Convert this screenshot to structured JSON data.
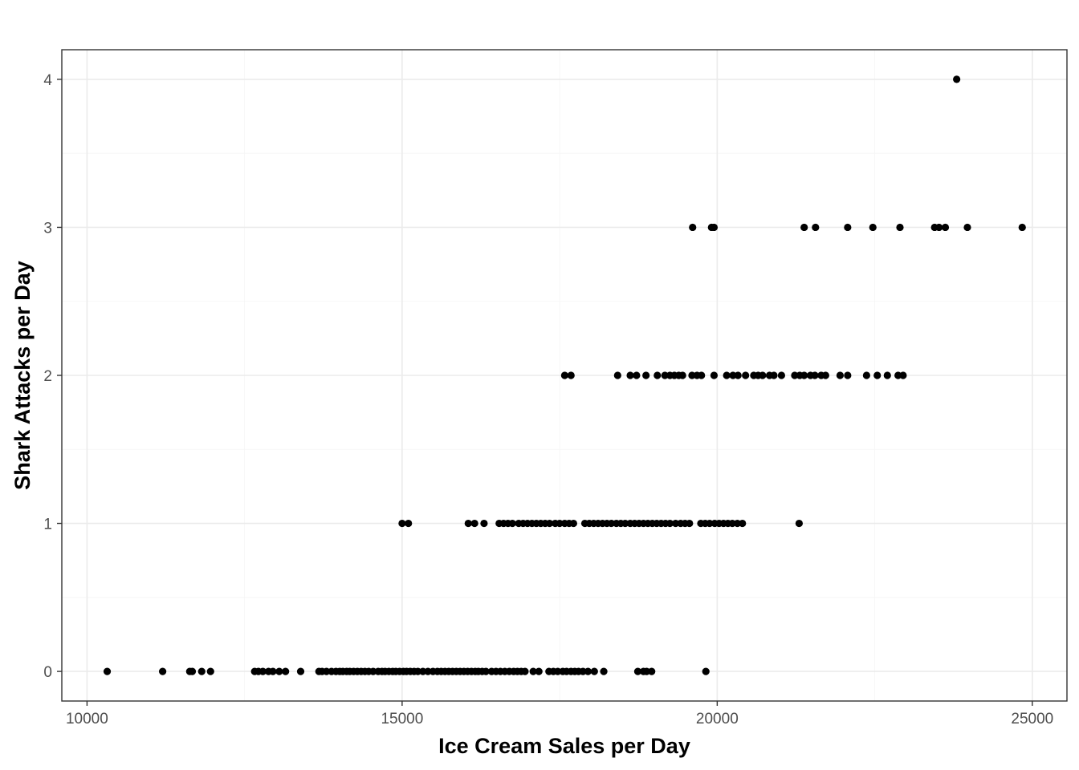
{
  "chart_data": {
    "type": "scatter",
    "title": "",
    "xlabel": "Ice Cream Sales per Day",
    "ylabel": "Shark Attacks per Day",
    "xlim": [
      9600,
      25550
    ],
    "ylim": [
      -0.2,
      4.2
    ],
    "x_ticks": [
      10000,
      15000,
      20000,
      25000
    ],
    "x_tick_labels": [
      "10000",
      "15000",
      "20000",
      "25000"
    ],
    "y_ticks": [
      0,
      1,
      2,
      3,
      4
    ],
    "y_tick_labels": [
      "0",
      "1",
      "2",
      "3",
      "4"
    ],
    "grid": true,
    "legend": "none",
    "point_color": "#000000",
    "series": [
      {
        "values": [
          [
            10320,
            0
          ],
          [
            11200,
            0
          ],
          [
            11630,
            0
          ],
          [
            11670,
            0
          ],
          [
            11820,
            0
          ],
          [
            11960,
            0
          ],
          [
            12660,
            0
          ],
          [
            12720,
            0
          ],
          [
            12790,
            0
          ],
          [
            12880,
            0
          ],
          [
            12950,
            0
          ],
          [
            13050,
            0
          ],
          [
            13150,
            0
          ],
          [
            13390,
            0
          ],
          [
            13680,
            0
          ],
          [
            13730,
            0
          ],
          [
            13800,
            0
          ],
          [
            13880,
            0
          ],
          [
            13950,
            0
          ],
          [
            14010,
            0
          ],
          [
            14060,
            0
          ],
          [
            14120,
            0
          ],
          [
            14170,
            0
          ],
          [
            14230,
            0
          ],
          [
            14290,
            0
          ],
          [
            14350,
            0
          ],
          [
            14410,
            0
          ],
          [
            14470,
            0
          ],
          [
            14540,
            0
          ],
          [
            14620,
            0
          ],
          [
            14680,
            0
          ],
          [
            14730,
            0
          ],
          [
            14790,
            0
          ],
          [
            14850,
            0
          ],
          [
            14900,
            0
          ],
          [
            14960,
            0
          ],
          [
            15020,
            0
          ],
          [
            15070,
            0
          ],
          [
            15130,
            0
          ],
          [
            15190,
            0
          ],
          [
            15250,
            0
          ],
          [
            15330,
            0
          ],
          [
            15410,
            0
          ],
          [
            15490,
            0
          ],
          [
            15560,
            0
          ],
          [
            15620,
            0
          ],
          [
            15680,
            0
          ],
          [
            15740,
            0
          ],
          [
            15800,
            0
          ],
          [
            15860,
            0
          ],
          [
            15920,
            0
          ],
          [
            15980,
            0
          ],
          [
            16040,
            0
          ],
          [
            16100,
            0
          ],
          [
            16160,
            0
          ],
          [
            16210,
            0
          ],
          [
            16270,
            0
          ],
          [
            16330,
            0
          ],
          [
            16420,
            0
          ],
          [
            16490,
            0
          ],
          [
            16560,
            0
          ],
          [
            16630,
            0
          ],
          [
            16700,
            0
          ],
          [
            16770,
            0
          ],
          [
            16830,
            0
          ],
          [
            16890,
            0
          ],
          [
            16950,
            0
          ],
          [
            17080,
            0
          ],
          [
            17170,
            0
          ],
          [
            17330,
            0
          ],
          [
            17400,
            0
          ],
          [
            17470,
            0
          ],
          [
            17550,
            0
          ],
          [
            17610,
            0
          ],
          [
            17680,
            0
          ],
          [
            17740,
            0
          ],
          [
            17800,
            0
          ],
          [
            17870,
            0
          ],
          [
            17950,
            0
          ],
          [
            18050,
            0
          ],
          [
            18200,
            0
          ],
          [
            18740,
            0
          ],
          [
            18830,
            0
          ],
          [
            18880,
            0
          ],
          [
            18960,
            0
          ],
          [
            19820,
            0
          ],
          [
            15000,
            1
          ],
          [
            15100,
            1
          ],
          [
            16050,
            1
          ],
          [
            16150,
            1
          ],
          [
            16300,
            1
          ],
          [
            16540,
            1
          ],
          [
            16610,
            1
          ],
          [
            16680,
            1
          ],
          [
            16750,
            1
          ],
          [
            16850,
            1
          ],
          [
            16920,
            1
          ],
          [
            16990,
            1
          ],
          [
            17060,
            1
          ],
          [
            17130,
            1
          ],
          [
            17200,
            1
          ],
          [
            17270,
            1
          ],
          [
            17340,
            1
          ],
          [
            17430,
            1
          ],
          [
            17500,
            1
          ],
          [
            17580,
            1
          ],
          [
            17650,
            1
          ],
          [
            17720,
            1
          ],
          [
            17900,
            1
          ],
          [
            17970,
            1
          ],
          [
            18040,
            1
          ],
          [
            18110,
            1
          ],
          [
            18180,
            1
          ],
          [
            18250,
            1
          ],
          [
            18320,
            1
          ],
          [
            18400,
            1
          ],
          [
            18470,
            1
          ],
          [
            18540,
            1
          ],
          [
            18620,
            1
          ],
          [
            18690,
            1
          ],
          [
            18760,
            1
          ],
          [
            18830,
            1
          ],
          [
            18900,
            1
          ],
          [
            18970,
            1
          ],
          [
            19040,
            1
          ],
          [
            19110,
            1
          ],
          [
            19180,
            1
          ],
          [
            19250,
            1
          ],
          [
            19340,
            1
          ],
          [
            19420,
            1
          ],
          [
            19490,
            1
          ],
          [
            19560,
            1
          ],
          [
            19740,
            1
          ],
          [
            19810,
            1
          ],
          [
            19880,
            1
          ],
          [
            19960,
            1
          ],
          [
            20030,
            1
          ],
          [
            20100,
            1
          ],
          [
            20170,
            1
          ],
          [
            20240,
            1
          ],
          [
            20320,
            1
          ],
          [
            20400,
            1
          ],
          [
            21300,
            1
          ],
          [
            17580,
            2
          ],
          [
            17680,
            2
          ],
          [
            18420,
            2
          ],
          [
            18620,
            2
          ],
          [
            18720,
            2
          ],
          [
            18870,
            2
          ],
          [
            19050,
            2
          ],
          [
            19170,
            2
          ],
          [
            19250,
            2
          ],
          [
            19320,
            2
          ],
          [
            19390,
            2
          ],
          [
            19450,
            2
          ],
          [
            19600,
            2
          ],
          [
            19680,
            2
          ],
          [
            19750,
            2
          ],
          [
            19950,
            2
          ],
          [
            20150,
            2
          ],
          [
            20250,
            2
          ],
          [
            20330,
            2
          ],
          [
            20450,
            2
          ],
          [
            20580,
            2
          ],
          [
            20650,
            2
          ],
          [
            20720,
            2
          ],
          [
            20830,
            2
          ],
          [
            20900,
            2
          ],
          [
            21020,
            2
          ],
          [
            21230,
            2
          ],
          [
            21310,
            2
          ],
          [
            21380,
            2
          ],
          [
            21480,
            2
          ],
          [
            21550,
            2
          ],
          [
            21650,
            2
          ],
          [
            21720,
            2
          ],
          [
            21950,
            2
          ],
          [
            22070,
            2
          ],
          [
            22370,
            2
          ],
          [
            22540,
            2
          ],
          [
            22700,
            2
          ],
          [
            22870,
            2
          ],
          [
            22950,
            2
          ],
          [
            19610,
            3
          ],
          [
            19910,
            3
          ],
          [
            19950,
            3
          ],
          [
            21380,
            3
          ],
          [
            21560,
            3
          ],
          [
            22070,
            3
          ],
          [
            22470,
            3
          ],
          [
            22900,
            3
          ],
          [
            23450,
            3
          ],
          [
            23520,
            3
          ],
          [
            23620,
            3
          ],
          [
            23970,
            3
          ],
          [
            24840,
            3
          ],
          [
            23800,
            4
          ]
        ]
      }
    ]
  }
}
